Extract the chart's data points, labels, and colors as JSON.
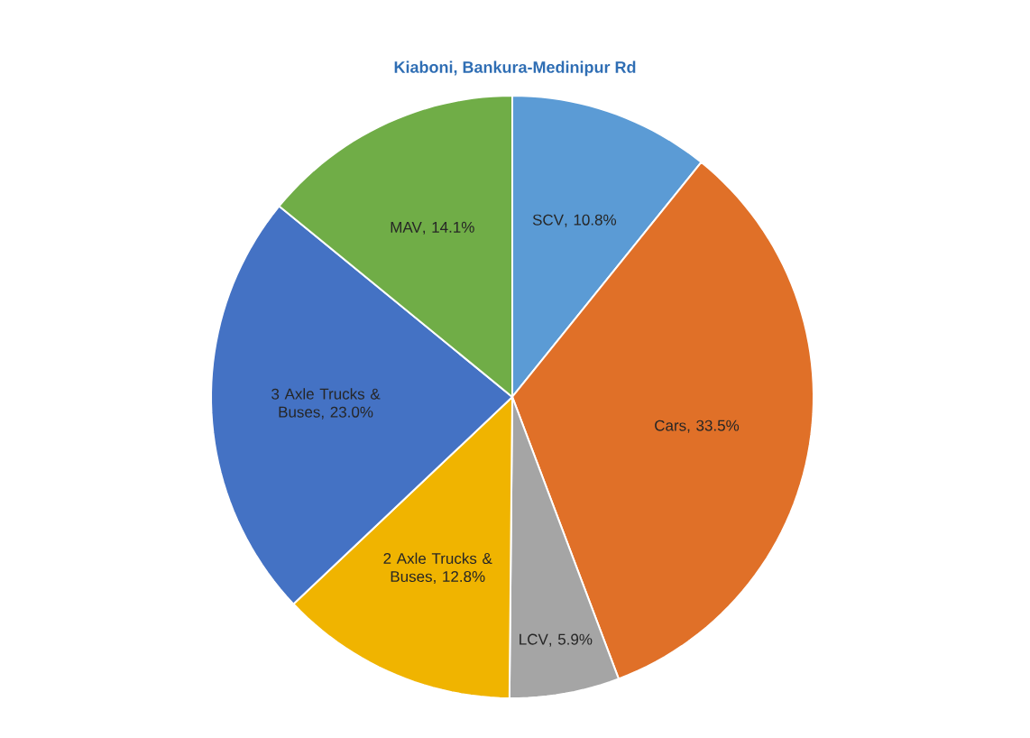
{
  "chart_data": {
    "type": "pie",
    "title": "Kiaboni, Bankura-Medinipur Rd",
    "categories": [
      "SCV",
      "Cars",
      "LCV",
      "2 Axle Trucks & Buses",
      "3 Axle Trucks & Buses",
      "MAV"
    ],
    "values": [
      10.8,
      33.5,
      5.9,
      12.8,
      23.0,
      14.1
    ],
    "colors": [
      "#5b9bd5",
      "#e07028",
      "#a5a5a5",
      "#f0b400",
      "#4472c4",
      "#70ad47"
    ],
    "value_labels": [
      ", 10.8%",
      ", 33.5%",
      ", 5.9%",
      ", 12.8%",
      ", 23.0%",
      ", 14.1%"
    ]
  }
}
